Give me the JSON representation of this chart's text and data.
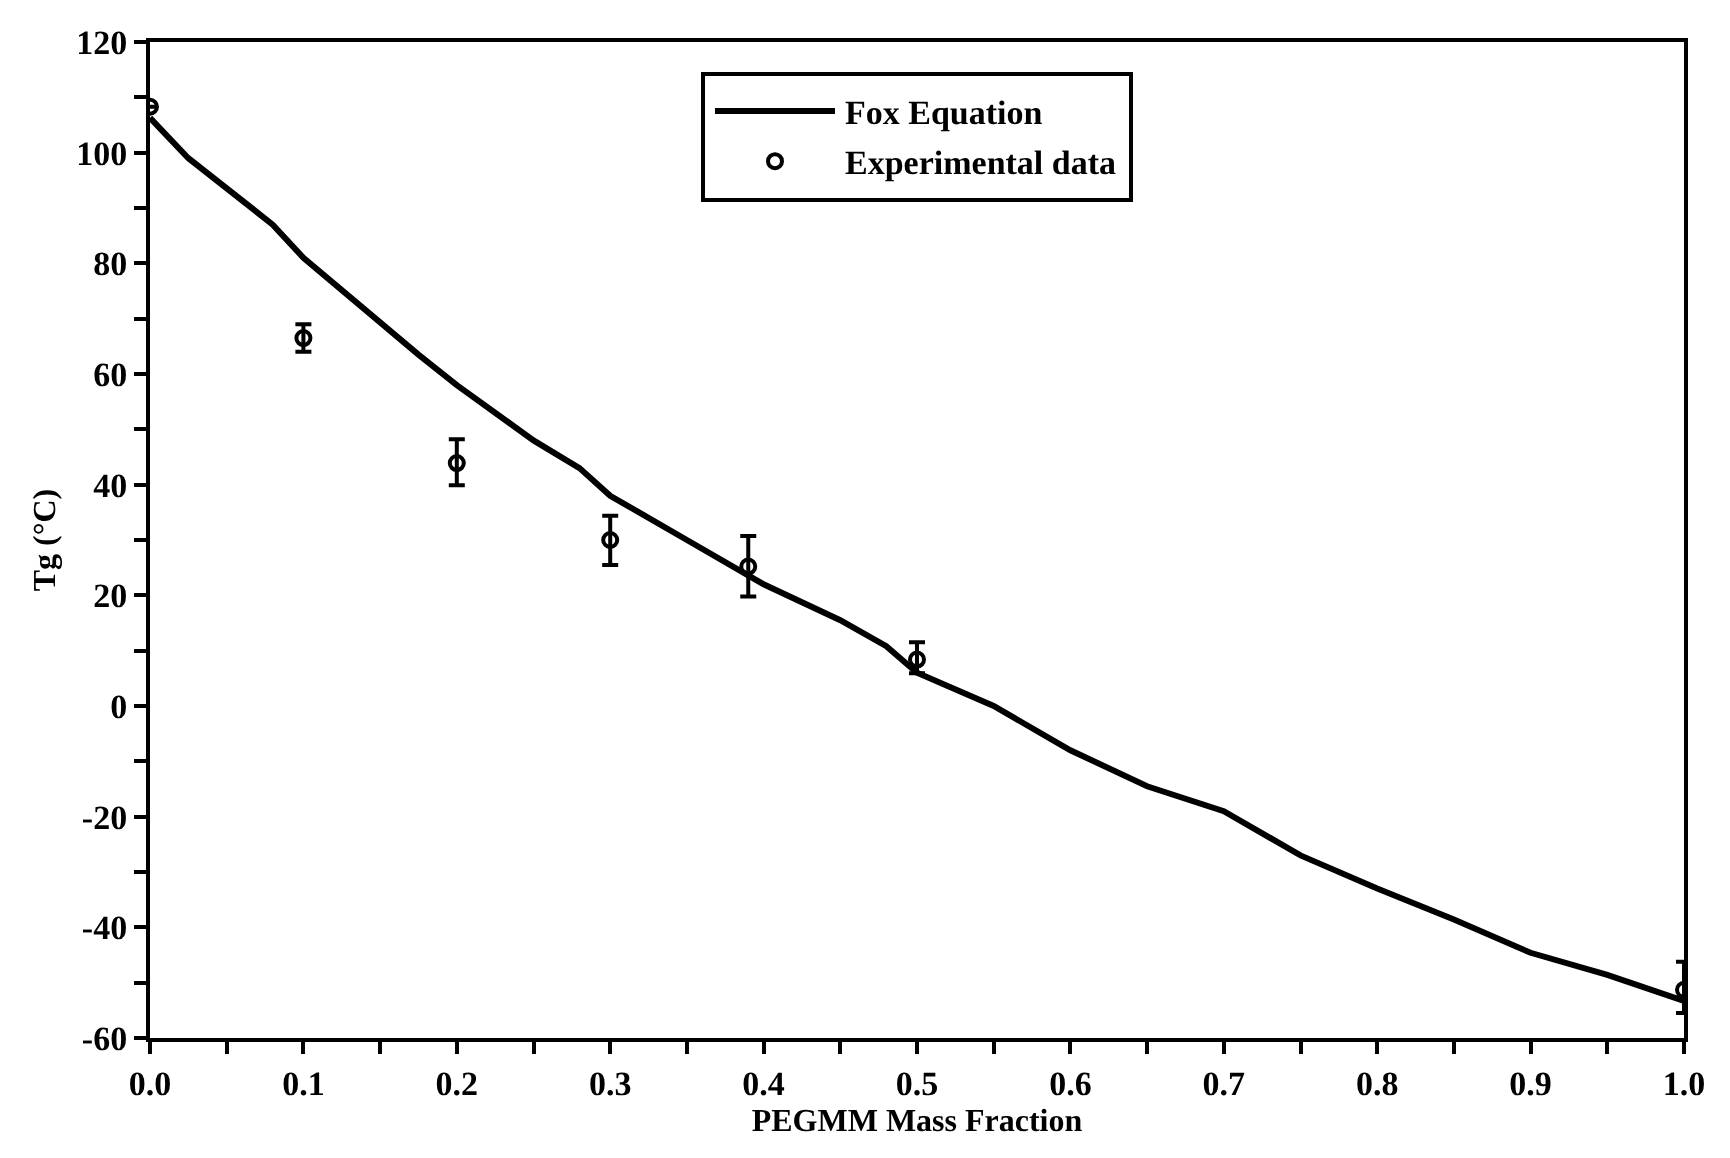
{
  "chart_data": {
    "type": "line",
    "xlabel": "PEGMM Mass Fraction",
    "ylabel": "Tg (°C)",
    "xlim": [
      0,
      1.0
    ],
    "ylim": [
      -60,
      120
    ],
    "xticks": [
      {
        "value": 0,
        "label": "0.0"
      },
      {
        "value": 0.05,
        "label": null
      },
      0.1,
      {
        "value": 0.15,
        "label": null
      },
      0.2,
      {
        "value": 0.25,
        "label": null
      },
      0.3,
      {
        "value": 0.35,
        "label": null
      },
      0.4,
      {
        "value": 0.45,
        "label": null
      },
      0.5,
      {
        "value": 0.55,
        "label": null
      },
      0.6,
      {
        "value": 0.65,
        "label": null
      },
      0.7,
      {
        "value": 0.75,
        "label": null
      },
      0.8,
      {
        "value": 0.85,
        "label": null
      },
      0.9,
      {
        "value": 0.95,
        "label": null
      },
      {
        "value": 1.0,
        "label": "1.0"
      }
    ],
    "yticks": [
      -60,
      {
        "value": -50,
        "label": null
      },
      -40,
      {
        "value": -30,
        "label": null
      },
      -20,
      {
        "value": -10,
        "label": null
      },
      0,
      {
        "value": 10,
        "label": null
      },
      20,
      {
        "value": 30,
        "label": null
      },
      40,
      {
        "value": 50,
        "label": null
      },
      60,
      {
        "value": 70,
        "label": null
      },
      80,
      {
        "value": 90,
        "label": null
      },
      100,
      {
        "value": 110,
        "label": null
      },
      120
    ],
    "legend": "top",
    "series": [
      {
        "name": "Fox Equation",
        "color": "#000000",
        "line_style": "solid",
        "marker": "none",
        "x": [
          0,
          0.025,
          0.08,
          0.1,
          0.175,
          0.2,
          0.25,
          0.28,
          0.3,
          0.35,
          0.4,
          0.45,
          0.48,
          0.5,
          0.55,
          0.6,
          0.65,
          0.7,
          0.75,
          0.8,
          0.85,
          0.9,
          0.95,
          1.0
        ],
        "values": [
          106.3,
          99,
          87,
          81,
          63.5,
          58,
          48,
          43,
          38,
          30,
          22,
          15.5,
          10.8,
          6,
          0,
          -8,
          -14.5,
          -19,
          -27,
          -33,
          -38.6,
          -44.6,
          -48.6,
          -53.3
        ]
      },
      {
        "name": "Experimental data",
        "type": "scatter",
        "color": "#000000",
        "marker": "circle",
        "x": [
          0,
          0.1,
          0.2,
          0.3,
          0.39,
          0.5,
          1.0
        ],
        "values": [
          108.3,
          66.5,
          43.9,
          30,
          25.2,
          8.4,
          -51.3
        ],
        "errors": [
          null,
          [
            64,
            69
          ],
          [
            39.9,
            48.2
          ],
          [
            25.5,
            34.4
          ],
          [
            19.8,
            30.7
          ],
          [
            5.9,
            11.5
          ],
          [
            -55.5,
            -46.2
          ]
        ]
      }
    ]
  }
}
